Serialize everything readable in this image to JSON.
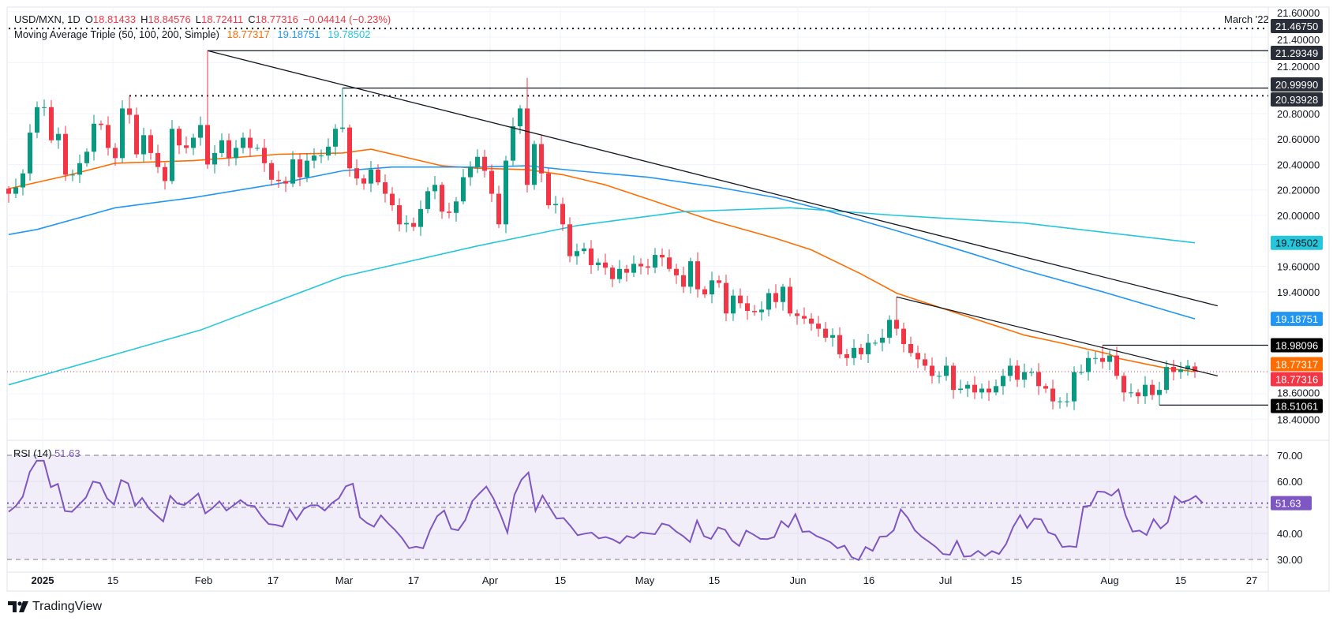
{
  "header": {
    "symbol": "USD/MXN, 1D",
    "open_label": "O",
    "open": "18.81433",
    "high_label": "H",
    "high": "18.84576",
    "low_label": "L",
    "low": "18.72411",
    "close_label": "C",
    "close": "18.77316",
    "change": "−0.04414 (−0.23%)"
  },
  "ma_legend": {
    "title": "Moving Average Triple (50, 100, 200, Simple)",
    "ma50": "18.77317",
    "ma100": "19.18751",
    "ma200": "19.78502"
  },
  "level_note": "March '22",
  "rsi_legend": {
    "title": "RSI (14)",
    "value": "51.63"
  },
  "logo": {
    "text": "TradingView"
  },
  "colors": {
    "up": "#089981",
    "down": "#f23645",
    "ma50": "#ff6d00",
    "ma100": "#2196f3",
    "ma200": "#26c6da",
    "rsi": "#7e57c2",
    "trendline": "#131722",
    "level_badge": "#2a2e39",
    "level_badge_black": "#000000"
  },
  "chart_data": [
    {
      "type": "candlestick",
      "title": "USD/MXN, 1D",
      "ylim": [
        18.4,
        21.6
      ],
      "grid": true,
      "price_ticks": [
        "21.60000",
        "21.40000",
        "21.20000",
        "20.80000",
        "20.60000",
        "20.40000",
        "20.20000",
        "20.00000",
        "19.60000",
        "19.40000",
        "18.60000",
        "18.40000"
      ],
      "x_tick_labels": [
        "2025",
        "15",
        "Feb",
        "17",
        "Mar",
        "17",
        "Apr",
        "15",
        "May",
        "15",
        "Jun",
        "16",
        "Jul",
        "15",
        "Aug",
        "15",
        "27"
      ],
      "closes": [
        20.17,
        20.22,
        20.33,
        20.65,
        20.85,
        20.85,
        20.59,
        20.64,
        20.32,
        20.32,
        20.41,
        20.5,
        20.72,
        20.71,
        20.53,
        20.45,
        20.84,
        20.79,
        20.48,
        20.63,
        20.49,
        20.38,
        20.27,
        20.68,
        20.55,
        20.53,
        20.61,
        20.71,
        20.4,
        20.49,
        20.59,
        20.45,
        20.53,
        20.61,
        20.53,
        20.53,
        20.41,
        20.28,
        20.27,
        20.25,
        20.44,
        20.3,
        20.43,
        20.47,
        20.47,
        20.54,
        20.68,
        20.69,
        20.37,
        20.29,
        20.25,
        20.36,
        20.26,
        20.17,
        20.08,
        19.93,
        19.94,
        19.91,
        20.05,
        20.19,
        20.24,
        20.03,
        20.02,
        20.11,
        20.3,
        20.38,
        20.46,
        20.35,
        20.17,
        19.93,
        20.43,
        20.7,
        20.84,
        20.24,
        20.56,
        20.33,
        20.08,
        20.09,
        19.93,
        19.68,
        19.72,
        19.74,
        19.61,
        19.63,
        19.59,
        19.5,
        19.58,
        19.55,
        19.62,
        19.6,
        19.59,
        19.69,
        19.67,
        19.58,
        19.53,
        19.44,
        19.64,
        19.42,
        19.38,
        19.49,
        19.47,
        19.23,
        19.37,
        19.31,
        19.25,
        19.24,
        19.26,
        19.39,
        19.32,
        19.44,
        19.23,
        19.21,
        19.19,
        19.15,
        19.11,
        19.04,
        19.06,
        18.91,
        18.88,
        18.96,
        18.91,
        19.0,
        19.0,
        19.04,
        19.18,
        19.11,
        18.99,
        18.92,
        18.87,
        18.82,
        18.74,
        18.74,
        18.82,
        18.63,
        18.64,
        18.67,
        18.61,
        18.64,
        18.61,
        18.66,
        18.74,
        18.82,
        18.71,
        18.77,
        18.77,
        18.66,
        18.64,
        18.54,
        18.54,
        18.54,
        18.77,
        18.77,
        18.88,
        18.88,
        18.85,
        18.9,
        18.74,
        18.61,
        18.61,
        18.58,
        18.67,
        18.59,
        18.63,
        18.81,
        18.77,
        18.79,
        18.82,
        18.77316
      ],
      "notable_extremes": [
        {
          "bar": 17,
          "high": 20.93928
        },
        {
          "bar": 28,
          "high": 21.29349
        },
        {
          "bar": 47,
          "high": 20.9999
        },
        {
          "bar": 73,
          "high": 21.08
        },
        {
          "bar": 125,
          "high": 19.36
        },
        {
          "bar": 154,
          "high": 18.98096
        },
        {
          "bar": 162,
          "low": 18.51061
        }
      ],
      "moving_averages": [
        {
          "name": "MA 50",
          "color": "#ff6d00",
          "last": "18.77317",
          "points": [
            [
              0,
              20.21
            ],
            [
              8,
              20.31
            ],
            [
              15,
              20.41
            ],
            [
              26,
              20.43
            ],
            [
              38,
              20.48
            ],
            [
              47,
              20.49
            ],
            [
              51,
              20.52
            ],
            [
              61,
              20.39
            ],
            [
              66,
              20.37
            ],
            [
              73,
              20.36
            ],
            [
              78,
              20.32
            ],
            [
              84,
              20.24
            ],
            [
              91,
              20.11
            ],
            [
              99,
              19.96
            ],
            [
              108,
              19.82
            ],
            [
              113,
              19.73
            ],
            [
              120,
              19.54
            ],
            [
              125,
              19.39
            ],
            [
              132,
              19.26
            ],
            [
              143,
              19.06
            ],
            [
              148,
              19.0
            ],
            [
              155,
              18.91
            ],
            [
              156,
              18.88
            ],
            [
              163,
              18.8
            ],
            [
              167,
              18.77317
            ]
          ]
        },
        {
          "name": "MA 100",
          "color": "#2196f3",
          "last": "19.18751",
          "points": [
            [
              0,
              19.85
            ],
            [
              4,
              19.89
            ],
            [
              15,
              20.06
            ],
            [
              26,
              20.14
            ],
            [
              38,
              20.25
            ],
            [
              47,
              20.35
            ],
            [
              54,
              20.38
            ],
            [
              66,
              20.38
            ],
            [
              73,
              20.39
            ],
            [
              80,
              20.35
            ],
            [
              90,
              20.3
            ],
            [
              100,
              20.22
            ],
            [
              108,
              20.14
            ],
            [
              115,
              20.04
            ],
            [
              125,
              19.88
            ],
            [
              135,
              19.71
            ],
            [
              143,
              19.57
            ],
            [
              154,
              19.4
            ],
            [
              167,
              19.18751
            ]
          ]
        },
        {
          "name": "MA 200",
          "color": "#26c6da",
          "last": "19.78502",
          "points": [
            [
              0,
              18.67
            ],
            [
              27,
              19.1
            ],
            [
              47,
              19.52
            ],
            [
              66,
              19.76
            ],
            [
              80,
              19.92
            ],
            [
              95,
              20.03
            ],
            [
              110,
              20.06
            ],
            [
              125,
              20.0
            ],
            [
              143,
              19.94
            ],
            [
              167,
              19.78502
            ]
          ]
        }
      ],
      "trendlines": [
        {
          "from": [
            28,
            21.29349
          ],
          "to": [
            170.2,
            19.29
          ]
        },
        {
          "from": [
            125,
            19.36
          ],
          "to": [
            170.2,
            18.74
          ]
        }
      ],
      "levels": [
        {
          "value": 21.4675,
          "label": "21.46750",
          "style": "dotted",
          "from_bar": 0,
          "badge": "#2a2e39"
        },
        {
          "value": 21.29349,
          "label": "21.29349",
          "style": "solid",
          "from_bar": 28,
          "badge": "#2a2e39"
        },
        {
          "value": 20.9999,
          "label": "20.99990",
          "style": "solid",
          "from_bar": 47,
          "badge": "#2a2e39"
        },
        {
          "value": 20.93928,
          "label": "20.93928",
          "style": "dotted",
          "from_bar": 17,
          "badge": "#2a2e39"
        },
        {
          "value": 18.98096,
          "label": "18.98096",
          "style": "solid",
          "from_bar": 154,
          "badge": "#000000"
        },
        {
          "value": 18.51061,
          "label": "18.51061",
          "style": "solid",
          "from_bar": 162,
          "badge": "#000000"
        }
      ],
      "price_badges": [
        {
          "label": "19.78502",
          "value": 19.78502,
          "color": "#26c6da",
          "text_color": "#131722"
        },
        {
          "label": "19.18751",
          "value": 19.18751,
          "color": "#2196f3",
          "text_color": "#ffffff"
        },
        {
          "label": "18.77317",
          "value": 18.77317,
          "color": "#ff6d00",
          "text_color": "#ffffff"
        },
        {
          "label": "18.77316",
          "value": 18.77316,
          "color": "#f23645",
          "text_color": "#ffffff"
        }
      ],
      "last_price": 18.77316
    },
    {
      "type": "line",
      "title": "RSI (14)",
      "ylim": [
        25,
        75
      ],
      "bands": [
        30,
        70
      ],
      "midline": 50,
      "y_ticks": [
        "70.00",
        "60.00",
        "40.00",
        "30.00"
      ],
      "last": "51.63",
      "values": [
        48.3,
        50.5,
        54.1,
        63.6,
        67.9,
        67.9,
        57.8,
        59,
        48.6,
        48.3,
        51,
        53.8,
        59.9,
        59.3,
        53.5,
        51.1,
        60.5,
        59.2,
        50.5,
        53.6,
        49.5,
        47,
        44.6,
        54.4,
        51.5,
        50.9,
        53,
        55.3,
        47.7,
        49.7,
        52.3,
        48.8,
        50.8,
        52.8,
        50.8,
        50.5,
        46.6,
        43.6,
        43.3,
        42.6,
        49.4,
        45.3,
        49.4,
        50.8,
        50.8,
        48.8,
        51.6,
        53.5,
        58.1,
        59.1,
        46.2,
        44,
        42.6,
        46.9,
        43.9,
        41.3,
        38.2,
        34.3,
        34.9,
        34.3,
        41.3,
        46.6,
        48.8,
        41.8,
        41.2,
        45.1,
        52.4,
        55.3,
        58,
        53.5,
        47.4,
        40.3,
        54.8,
        60.6,
        63.4,
        48.7,
        54.5,
        50,
        45.7,
        45.9,
        42.8,
        39.3,
        39.9,
        40.3,
        38.1,
        38.6,
        37.7,
        36.2,
        39,
        38.2,
        40.4,
        40,
        39.7,
        43.8,
        43.1,
        40.8,
        39,
        36.7,
        44.9,
        38.9,
        37.9,
        42.3,
        41.4,
        37.2,
        35.2,
        41.1,
        39.6,
        37.9,
        37.8,
        38.6,
        44.7,
        42.4,
        47.4,
        40.6,
        40.8,
        39,
        37.9,
        36.6,
        34.3,
        35.3,
        30.9,
        29.8,
        34.8,
        33.3,
        38.7,
        38.9,
        41.2,
        49.2,
        46,
        41.2,
        38.7,
        36.8,
        34.8,
        32.1,
        31.8,
        37.1,
        31.1,
        31.3,
        33.3,
        31.3,
        33.2,
        32.1,
        35.9,
        42.5,
        47,
        42.1,
        45.7,
        45.4,
        40.4,
        39.4,
        34.8,
        35.1,
        34.8,
        50.3,
        50.7,
        56.1,
        55.9,
        54.5,
        56.9,
        47,
        40.7,
        41.1,
        39.4,
        45.5,
        41.9,
        44.2,
        54.2,
        51.9,
        52.8,
        54.4,
        51.63
      ]
    }
  ]
}
